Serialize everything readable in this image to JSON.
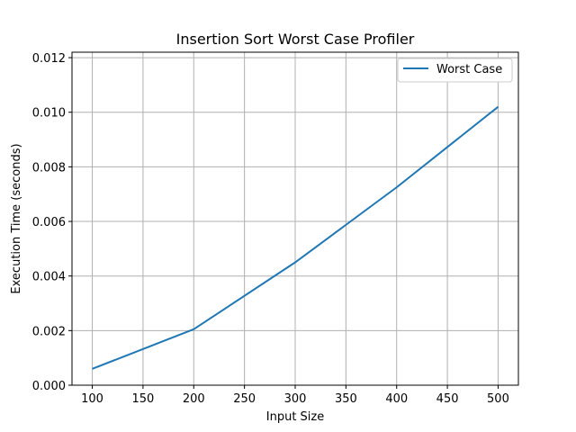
{
  "chart_data": {
    "type": "line",
    "title": "Insertion Sort Worst Case Profiler",
    "xlabel": "Input Size",
    "ylabel": "Execution Time (seconds)",
    "xlim": [
      80,
      520
    ],
    "ylim": [
      0,
      0.0122
    ],
    "x_ticks": [
      100,
      150,
      200,
      250,
      300,
      350,
      400,
      450,
      500
    ],
    "x_tick_labels": [
      "100",
      "150",
      "200",
      "250",
      "300",
      "350",
      "400",
      "450",
      "500"
    ],
    "y_ticks": [
      0,
      0.002,
      0.004,
      0.006,
      0.008,
      0.01,
      0.012
    ],
    "y_tick_labels": [
      "0.000",
      "0.002",
      "0.004",
      "0.006",
      "0.008",
      "0.010",
      "0.012"
    ],
    "grid": true,
    "legend_position": "top-right",
    "series": [
      {
        "name": "Worst Case",
        "color": "#1f77b4",
        "x": [
          100,
          200,
          300,
          400,
          500
        ],
        "y": [
          0.0006,
          0.00205,
          0.0045,
          0.00725,
          0.0102
        ]
      }
    ]
  }
}
